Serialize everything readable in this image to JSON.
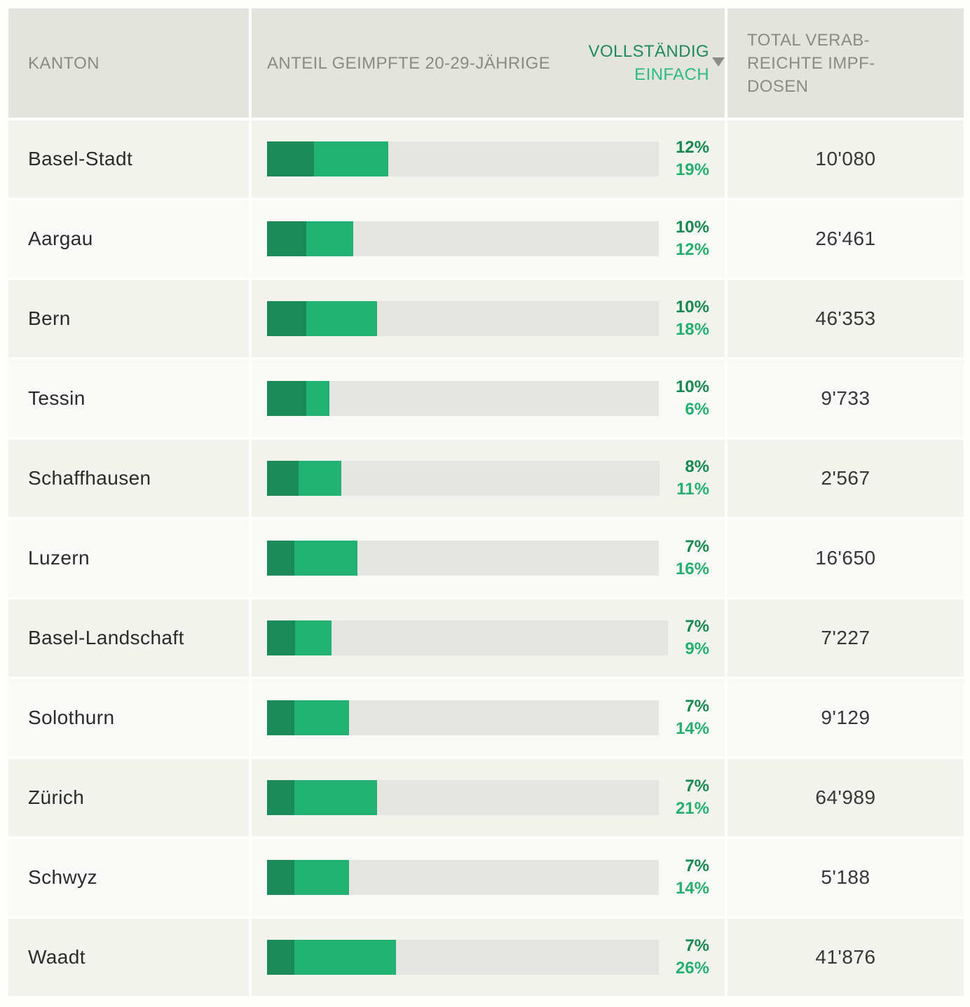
{
  "theme": {
    "header_bg": "#e4e4df",
    "row_bg_odd": "#f3f3ed",
    "row_bg_even": "#f9f9f7",
    "bar_track": "#e5e5e2",
    "bar_vollstaendig": "#1b8a58",
    "bar_einfach": "#22b273",
    "text_vollstaendig": "#17894f",
    "text_einfach": "#25b06e",
    "header_text": "#8b8b82",
    "sort_arrow": "#8c8c86"
  },
  "header": {
    "kanton": "KANTON",
    "anteil": "ANTEIL GEIMPFTE 20-29-JÄHRIGE",
    "vollstaendig": "VOLLSTÄNDIG",
    "einfach": "EINFACH",
    "total": "TOTAL VERAB-REICHTE IMPF-DOSEN"
  },
  "rows": [
    {
      "canton": "Basel-Stadt",
      "vollstaendig_pct": 12,
      "einfach_pct": 19,
      "vollstaendig_label": "12%",
      "einfach_label": "19%",
      "doses": "10'080"
    },
    {
      "canton": "Aargau",
      "vollstaendig_pct": 10,
      "einfach_pct": 12,
      "vollstaendig_label": "10%",
      "einfach_label": "12%",
      "doses": "26'461"
    },
    {
      "canton": "Bern",
      "vollstaendig_pct": 10,
      "einfach_pct": 18,
      "vollstaendig_label": "10%",
      "einfach_label": "18%",
      "doses": "46'353"
    },
    {
      "canton": "Tessin",
      "vollstaendig_pct": 10,
      "einfach_pct": 6,
      "vollstaendig_label": "10%",
      "einfach_label": "6%",
      "doses": "9'733"
    },
    {
      "canton": "Schaffhausen",
      "vollstaendig_pct": 8,
      "einfach_pct": 11,
      "vollstaendig_label": "8%",
      "einfach_label": "11%",
      "doses": "2'567"
    },
    {
      "canton": "Luzern",
      "vollstaendig_pct": 7,
      "einfach_pct": 16,
      "vollstaendig_label": "7%",
      "einfach_label": "16%",
      "doses": "16'650"
    },
    {
      "canton": "Basel-Landschaft",
      "vollstaendig_pct": 7,
      "einfach_pct": 9,
      "vollstaendig_label": "7%",
      "einfach_label": "9%",
      "doses": "7'227"
    },
    {
      "canton": "Solothurn",
      "vollstaendig_pct": 7,
      "einfach_pct": 14,
      "vollstaendig_label": "7%",
      "einfach_label": "14%",
      "doses": "9'129"
    },
    {
      "canton": "Zürich",
      "vollstaendig_pct": 7,
      "einfach_pct": 21,
      "vollstaendig_label": "7%",
      "einfach_label": "21%",
      "doses": "64'989"
    },
    {
      "canton": "Schwyz",
      "vollstaendig_pct": 7,
      "einfach_pct": 14,
      "vollstaendig_label": "7%",
      "einfach_label": "14%",
      "doses": "5'188"
    },
    {
      "canton": "Waadt",
      "vollstaendig_pct": 7,
      "einfach_pct": 26,
      "vollstaendig_label": "7%",
      "einfach_label": "26%",
      "doses": "41'876"
    }
  ],
  "chart_data": {
    "type": "bar",
    "orientation": "horizontal-stacked",
    "categories": [
      "Basel-Stadt",
      "Aargau",
      "Bern",
      "Tessin",
      "Schaffhausen",
      "Luzern",
      "Basel-Landschaft",
      "Solothurn",
      "Zürich",
      "Schwyz",
      "Waadt"
    ],
    "series": [
      {
        "name": "Vollständig",
        "unit": "%",
        "values": [
          12,
          10,
          10,
          10,
          8,
          7,
          7,
          7,
          7,
          7,
          7
        ]
      },
      {
        "name": "Einfach",
        "unit": "%",
        "values": [
          19,
          12,
          18,
          6,
          11,
          16,
          9,
          14,
          21,
          14,
          26
        ]
      },
      {
        "name": "Total verabreichte Impfdosen",
        "values": [
          10080,
          26461,
          46353,
          9733,
          2567,
          16650,
          7227,
          9129,
          64989,
          5188,
          41876
        ]
      }
    ],
    "title": "Anteil geimpfte 20-29-Jährige",
    "xlabel": "",
    "ylabel": "Kanton",
    "xlim": [
      0,
      100
    ],
    "sort": {
      "column": "Vollständig",
      "direction": "descending"
    },
    "legend_position": "column-header"
  }
}
